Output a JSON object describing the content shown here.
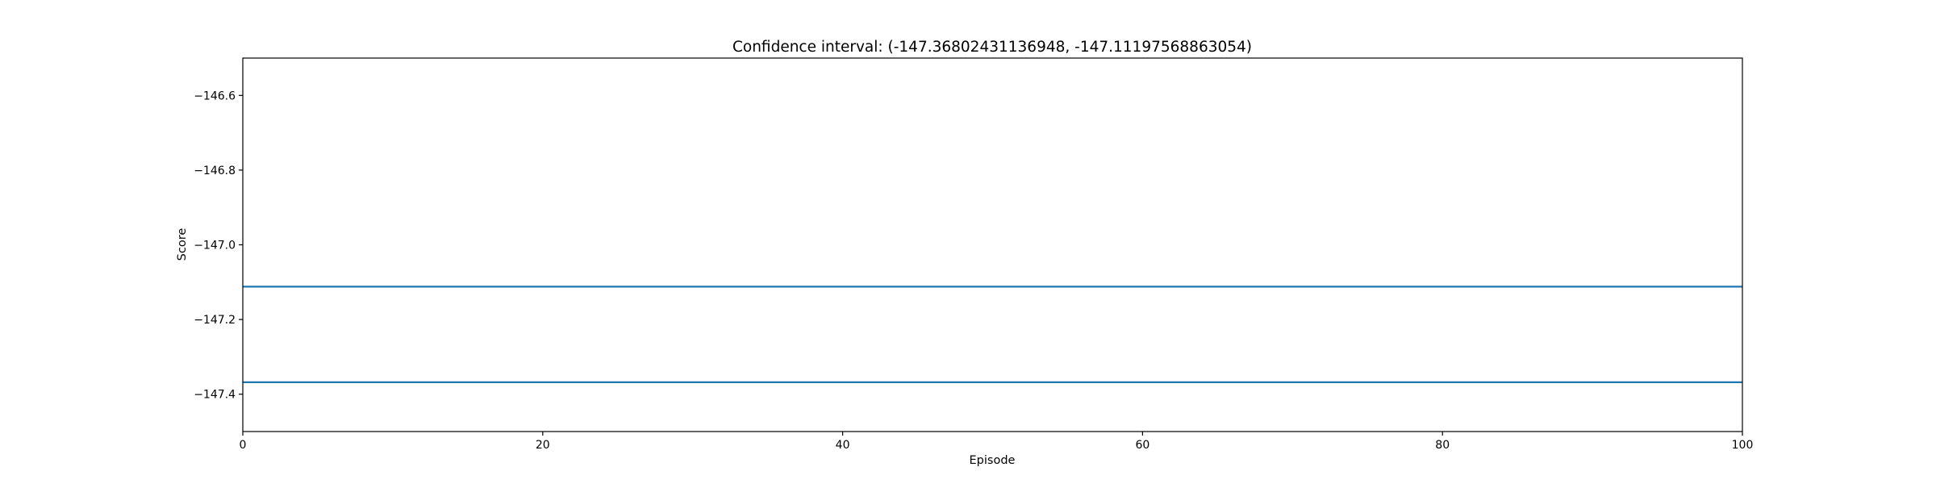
{
  "chart_data": {
    "type": "line",
    "title": "Confidence interval: (-147.36802431136948, -147.11197568863054)",
    "xlabel": "Episode",
    "ylabel": "Score",
    "xlim": [
      0,
      100
    ],
    "ylim": [
      -147.5,
      -146.5
    ],
    "grid": false,
    "x_ticks": [
      0,
      20,
      40,
      60,
      80,
      100
    ],
    "x_tick_labels": [
      "0",
      "20",
      "40",
      "60",
      "80",
      "100"
    ],
    "y_ticks": [
      -147.4,
      -147.2,
      -147.0,
      -146.8,
      -146.6
    ],
    "y_tick_labels": [
      "−147.4",
      "−147.2",
      "−147.0",
      "−146.8",
      "−146.6"
    ],
    "series": [
      {
        "x": [
          0,
          100
        ],
        "values": [
          -147.11197568863054,
          -147.11197568863054
        ],
        "color": "#1f77b4"
      },
      {
        "x": [
          0,
          100
        ],
        "values": [
          -147.36802431136948,
          -147.36802431136948
        ],
        "color": "#1f77b4"
      }
    ]
  }
}
